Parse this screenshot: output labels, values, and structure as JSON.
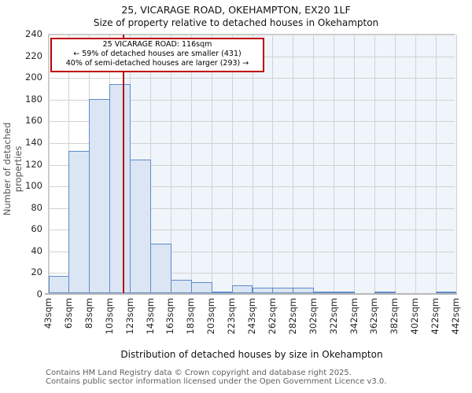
{
  "title": "25, VICARAGE ROAD, OKEHAMPTON, EX20 1LF",
  "subtitle": "Size of property relative to detached houses in Okehampton",
  "annotation": {
    "line1": "25 VICARAGE ROAD: 116sqm",
    "line2": "← 59% of detached houses are smaller (431)",
    "line3": "40% of semi-detached houses are larger (293) →"
  },
  "footer": {
    "line1": "Contains HM Land Registry data © Crown copyright and database right 2025.",
    "line2": "Contains public sector information licensed under the Open Government Licence v3.0."
  },
  "chart_data": {
    "type": "bar",
    "title": "25, VICARAGE ROAD, OKEHAMPTON, EX20 1LF",
    "subtitle": "Size of property relative to detached houses in Okehampton",
    "xlabel": "Distribution of detached houses by size in Okehampton",
    "ylabel": "Number of detached properties",
    "ylim": [
      0,
      240
    ],
    "ytick_step": 20,
    "grid": true,
    "bin_edge_labels": [
      "43sqm",
      "63sqm",
      "83sqm",
      "103sqm",
      "123sqm",
      "143sqm",
      "163sqm",
      "183sqm",
      "203sqm",
      "223sqm",
      "243sqm",
      "262sqm",
      "282sqm",
      "302sqm",
      "322sqm",
      "342sqm",
      "362sqm",
      "382sqm",
      "402sqm",
      "422sqm",
      "442sqm"
    ],
    "bin_edges_sqm": [
      43,
      63,
      83,
      103,
      123,
      143,
      163,
      183,
      203,
      223,
      243,
      262,
      282,
      302,
      322,
      342,
      362,
      382,
      402,
      422,
      442
    ],
    "values": [
      16,
      131,
      179,
      193,
      123,
      46,
      12,
      10,
      1,
      7,
      5,
      5,
      5,
      1,
      1,
      0,
      1,
      0,
      0,
      1
    ],
    "marker_value_sqm": 116,
    "colors": {
      "bar_fill": "#dbe5f4",
      "bar_border": "#5e8cc9",
      "marker_line": "#b01212",
      "annotation_border": "#c00000",
      "shade_right_of_marker": "#f0f4fb",
      "gridline": "#d2d2d2"
    }
  }
}
